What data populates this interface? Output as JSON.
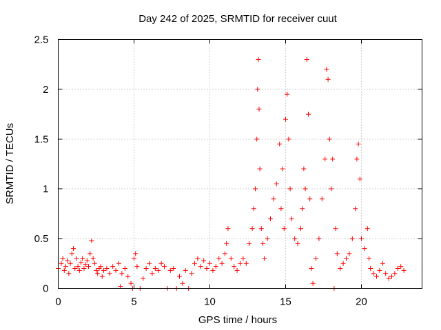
{
  "chart_data": {
    "type": "scatter",
    "title": "Day 242 of 2025, SRMTID for receiver cuut",
    "xlabel": "GPS time / hours",
    "ylabel": "SRMTID / TECUs",
    "xlim": [
      0,
      24
    ],
    "ylim": [
      0,
      2.5
    ],
    "grid": true,
    "marker": "+",
    "color": "#ff0000",
    "xticks": [
      0,
      5,
      10,
      15,
      20
    ],
    "yticks": [
      0,
      0.5,
      1,
      1.5,
      2,
      2.5
    ],
    "xtick_labels": [
      "0",
      "5",
      "10",
      "15",
      "20"
    ],
    "ytick_labels": [
      "0",
      "0.5",
      "1",
      "1.5",
      "2",
      "2.5"
    ],
    "series": [
      {
        "name": "SRMTID",
        "points": [
          [
            0.0,
            0.2
          ],
          [
            0.2,
            0.25
          ],
          [
            0.3,
            0.3
          ],
          [
            0.4,
            0.18
          ],
          [
            0.5,
            0.22
          ],
          [
            0.6,
            0.28
          ],
          [
            0.7,
            0.15
          ],
          [
            0.8,
            0.25
          ],
          [
            0.9,
            0.35
          ],
          [
            1.0,
            0.4
          ],
          [
            1.1,
            0.2
          ],
          [
            1.2,
            0.3
          ],
          [
            1.3,
            0.22
          ],
          [
            1.4,
            0.18
          ],
          [
            1.5,
            0.26
          ],
          [
            1.6,
            0.3
          ],
          [
            1.7,
            0.2
          ],
          [
            1.8,
            0.24
          ],
          [
            1.9,
            0.28
          ],
          [
            2.0,
            0.22
          ],
          [
            2.1,
            0.35
          ],
          [
            2.2,
            0.48
          ],
          [
            2.3,
            0.3
          ],
          [
            2.4,
            0.25
          ],
          [
            2.5,
            0.18
          ],
          [
            2.6,
            0.15
          ],
          [
            2.7,
            0.2
          ],
          [
            2.8,
            0.22
          ],
          [
            2.9,
            0.12
          ],
          [
            3.0,
            0.18
          ],
          [
            3.2,
            0.2
          ],
          [
            3.4,
            0.15
          ],
          [
            3.6,
            0.22
          ],
          [
            3.8,
            0.18
          ],
          [
            4.0,
            0.25
          ],
          [
            4.1,
            0.02
          ],
          [
            4.2,
            0.15
          ],
          [
            4.4,
            0.2
          ],
          [
            4.6,
            0.12
          ],
          [
            4.8,
            0.05
          ],
          [
            4.9,
            0.0
          ],
          [
            5.0,
            0.3
          ],
          [
            5.1,
            0.35
          ],
          [
            5.2,
            0.22
          ],
          [
            5.4,
            0.0
          ],
          [
            5.6,
            0.1
          ],
          [
            5.8,
            0.2
          ],
          [
            6.0,
            0.25
          ],
          [
            6.2,
            0.15
          ],
          [
            6.4,
            0.2
          ],
          [
            6.6,
            0.18
          ],
          [
            6.8,
            0.25
          ],
          [
            7.0,
            0.22
          ],
          [
            7.2,
            0.0
          ],
          [
            7.4,
            0.18
          ],
          [
            7.6,
            0.2
          ],
          [
            7.8,
            0.0
          ],
          [
            8.0,
            0.12
          ],
          [
            8.2,
            0.05
          ],
          [
            8.4,
            0.18
          ],
          [
            8.6,
            0.0
          ],
          [
            8.8,
            0.15
          ],
          [
            9.0,
            0.25
          ],
          [
            9.2,
            0.3
          ],
          [
            9.4,
            0.22
          ],
          [
            9.6,
            0.28
          ],
          [
            9.8,
            0.2
          ],
          [
            10.0,
            0.25
          ],
          [
            10.2,
            0.18
          ],
          [
            10.4,
            0.22
          ],
          [
            10.6,
            0.3
          ],
          [
            10.8,
            0.25
          ],
          [
            11.0,
            0.35
          ],
          [
            11.1,
            0.45
          ],
          [
            11.2,
            0.6
          ],
          [
            11.4,
            0.3
          ],
          [
            11.6,
            0.22
          ],
          [
            11.8,
            0.18
          ],
          [
            12.0,
            0.25
          ],
          [
            12.2,
            0.3
          ],
          [
            12.4,
            0.25
          ],
          [
            12.6,
            0.45
          ],
          [
            12.8,
            0.6
          ],
          [
            12.9,
            0.8
          ],
          [
            13.0,
            1.0
          ],
          [
            13.1,
            1.5
          ],
          [
            13.15,
            2.0
          ],
          [
            13.2,
            2.3
          ],
          [
            13.25,
            1.8
          ],
          [
            13.3,
            1.2
          ],
          [
            13.4,
            0.6
          ],
          [
            13.5,
            0.45
          ],
          [
            13.6,
            0.3
          ],
          [
            13.8,
            0.5
          ],
          [
            14.0,
            0.7
          ],
          [
            14.2,
            0.9
          ],
          [
            14.4,
            1.05
          ],
          [
            14.6,
            1.45
          ],
          [
            14.7,
            0.8
          ],
          [
            14.8,
            1.2
          ],
          [
            14.9,
            0.6
          ],
          [
            15.0,
            1.7
          ],
          [
            15.1,
            1.95
          ],
          [
            15.2,
            1.5
          ],
          [
            15.3,
            1.0
          ],
          [
            15.4,
            0.7
          ],
          [
            15.6,
            0.5
          ],
          [
            15.8,
            0.45
          ],
          [
            16.0,
            0.6
          ],
          [
            16.1,
            0.8
          ],
          [
            16.2,
            1.2
          ],
          [
            16.3,
            1.0
          ],
          [
            16.4,
            2.3
          ],
          [
            16.5,
            1.75
          ],
          [
            16.6,
            0.9
          ],
          [
            16.7,
            0.2
          ],
          [
            16.8,
            0.05
          ],
          [
            17.0,
            0.3
          ],
          [
            17.2,
            0.5
          ],
          [
            17.4,
            0.9
          ],
          [
            17.6,
            1.3
          ],
          [
            17.7,
            2.2
          ],
          [
            17.8,
            2.1
          ],
          [
            17.9,
            1.5
          ],
          [
            18.0,
            1.0
          ],
          [
            18.1,
            1.3
          ],
          [
            18.2,
            0.0
          ],
          [
            18.3,
            0.6
          ],
          [
            18.4,
            0.35
          ],
          [
            18.6,
            0.2
          ],
          [
            18.8,
            0.25
          ],
          [
            19.0,
            0.3
          ],
          [
            19.2,
            0.35
          ],
          [
            19.4,
            0.5
          ],
          [
            19.6,
            0.8
          ],
          [
            19.7,
            1.3
          ],
          [
            19.8,
            1.45
          ],
          [
            19.9,
            1.1
          ],
          [
            20.0,
            0.5
          ],
          [
            20.2,
            0.4
          ],
          [
            20.4,
            0.6
          ],
          [
            20.5,
            0.3
          ],
          [
            20.6,
            0.2
          ],
          [
            20.8,
            0.15
          ],
          [
            21.0,
            0.12
          ],
          [
            21.2,
            0.18
          ],
          [
            21.4,
            0.25
          ],
          [
            21.6,
            0.15
          ],
          [
            21.8,
            0.1
          ],
          [
            22.0,
            0.12
          ],
          [
            22.2,
            0.15
          ],
          [
            22.4,
            0.2
          ],
          [
            22.6,
            0.22
          ],
          [
            22.8,
            0.18
          ]
        ]
      }
    ]
  }
}
